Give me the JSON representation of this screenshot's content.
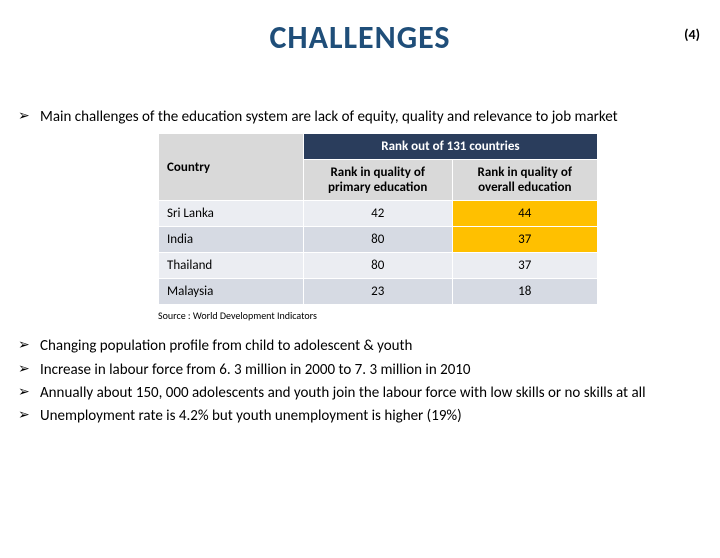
{
  "page_number": "(4)",
  "title": "CHALLENGES",
  "title_color": "#1f4e79",
  "bullet_glyph": "➢",
  "intro_bullet": "Main challenges of the education system are lack of equity, quality and relevance to job market",
  "table": {
    "header_bg": "#2a3d5c",
    "header_fg": "#ffffff",
    "subheader_bg": "#d9d9d9",
    "subheader_fg": "#000000",
    "highlight_bg": "#ffc000",
    "row_even_bg": "#ebedf2",
    "row_odd_bg": "#d6dae3",
    "merged_header": "Rank out of 131 countries",
    "col_headers": {
      "country": "Country",
      "primary": "Rank in quality of primary education",
      "overall": "Rank in quality of overall education"
    },
    "rows": [
      {
        "country": "Sri Lanka",
        "primary": "42",
        "overall": "44",
        "highlight_overall": true
      },
      {
        "country": "India",
        "primary": "80",
        "overall": "37",
        "highlight_overall": true
      },
      {
        "country": "Thailand",
        "primary": "80",
        "overall": "37",
        "highlight_overall": false
      },
      {
        "country": "Malaysia",
        "primary": "23",
        "overall": "18",
        "highlight_overall": false
      }
    ]
  },
  "source": "Source : World Development Indicators",
  "lower_bullets": [
    "Changing population profile from child to adolescent & youth",
    "Increase in labour force from 6. 3 million in 2000 to 7. 3 million in 2010",
    "Annually about 150, 000  adolescents and youth join the labour force with low skills or no skills at all",
    "Unemployment rate is 4.2% but youth unemployment is higher (19%)"
  ]
}
